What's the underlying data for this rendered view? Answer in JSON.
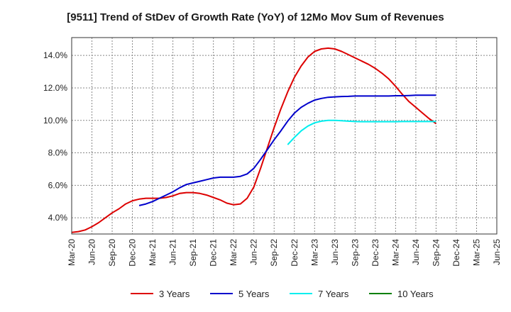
{
  "chart_data": {
    "type": "line",
    "title": "[9511]  Trend of StDev of Growth Rate (YoY) of 12Mo Mov Sum of Revenues",
    "xlabel": "",
    "ylabel": "",
    "ylim": [
      3.0,
      15.1
    ],
    "y_ticks": [
      4.0,
      6.0,
      8.0,
      10.0,
      12.0,
      14.0
    ],
    "y_tick_labels": [
      "4.0%",
      "6.0%",
      "8.0%",
      "10.0%",
      "12.0%",
      "14.0%"
    ],
    "x_ticks": [
      "Mar-20",
      "Jun-20",
      "Sep-20",
      "Dec-20",
      "Mar-21",
      "Jun-21",
      "Sep-21",
      "Dec-21",
      "Mar-22",
      "Jun-22",
      "Sep-22",
      "Dec-22",
      "Mar-23",
      "Jun-23",
      "Sep-23",
      "Dec-23",
      "Mar-24",
      "Jun-24",
      "Sep-24",
      "Dec-24",
      "Mar-25",
      "Jun-25"
    ],
    "grid": true,
    "legend_position": "bottom",
    "series": [
      {
        "name": "3 Years",
        "color": "#dd0000",
        "values": [
          [
            0,
            3.1
          ],
          [
            1,
            3.15
          ],
          [
            2,
            3.25
          ],
          [
            3,
            3.45
          ],
          [
            4,
            3.7
          ],
          [
            5,
            4.0
          ],
          [
            6,
            4.3
          ],
          [
            7,
            4.55
          ],
          [
            8,
            4.85
          ],
          [
            9,
            5.05
          ],
          [
            10,
            5.15
          ],
          [
            11,
            5.2
          ],
          [
            12,
            5.2
          ],
          [
            13,
            5.2
          ],
          [
            14,
            5.25
          ],
          [
            15,
            5.35
          ],
          [
            16,
            5.5
          ],
          [
            17,
            5.55
          ],
          [
            18,
            5.55
          ],
          [
            19,
            5.5
          ],
          [
            20,
            5.4
          ],
          [
            21,
            5.25
          ],
          [
            22,
            5.1
          ],
          [
            23,
            4.9
          ],
          [
            24,
            4.8
          ],
          [
            25,
            4.85
          ],
          [
            26,
            5.2
          ],
          [
            27,
            5.9
          ],
          [
            28,
            7.05
          ],
          [
            29,
            8.3
          ],
          [
            30,
            9.55
          ],
          [
            31,
            10.7
          ],
          [
            32,
            11.75
          ],
          [
            33,
            12.65
          ],
          [
            34,
            13.35
          ],
          [
            35,
            13.9
          ],
          [
            36,
            14.25
          ],
          [
            37,
            14.4
          ],
          [
            38,
            14.45
          ],
          [
            39,
            14.4
          ],
          [
            40,
            14.25
          ],
          [
            41,
            14.05
          ],
          [
            42,
            13.85
          ],
          [
            43,
            13.65
          ],
          [
            44,
            13.45
          ],
          [
            45,
            13.2
          ],
          [
            46,
            12.9
          ],
          [
            47,
            12.55
          ],
          [
            48,
            12.1
          ],
          [
            49,
            11.6
          ],
          [
            50,
            11.15
          ],
          [
            51,
            10.8
          ],
          [
            52,
            10.45
          ],
          [
            53,
            10.1
          ],
          [
            54,
            9.8
          ]
        ]
      },
      {
        "name": "5 Years",
        "color": "#0000cc",
        "values": [
          [
            10,
            4.75
          ],
          [
            11,
            4.85
          ],
          [
            12,
            5.0
          ],
          [
            13,
            5.2
          ],
          [
            14,
            5.4
          ],
          [
            15,
            5.6
          ],
          [
            16,
            5.85
          ],
          [
            17,
            6.05
          ],
          [
            18,
            6.15
          ],
          [
            19,
            6.25
          ],
          [
            20,
            6.35
          ],
          [
            21,
            6.45
          ],
          [
            22,
            6.5
          ],
          [
            23,
            6.5
          ],
          [
            24,
            6.5
          ],
          [
            25,
            6.55
          ],
          [
            26,
            6.7
          ],
          [
            27,
            7.05
          ],
          [
            28,
            7.6
          ],
          [
            29,
            8.2
          ],
          [
            30,
            8.8
          ],
          [
            31,
            9.35
          ],
          [
            32,
            9.95
          ],
          [
            33,
            10.45
          ],
          [
            34,
            10.8
          ],
          [
            35,
            11.05
          ],
          [
            36,
            11.25
          ],
          [
            37,
            11.35
          ],
          [
            38,
            11.42
          ],
          [
            39,
            11.45
          ],
          [
            40,
            11.47
          ],
          [
            41,
            11.48
          ],
          [
            42,
            11.5
          ],
          [
            43,
            11.5
          ],
          [
            44,
            11.5
          ],
          [
            45,
            11.5
          ],
          [
            46,
            11.5
          ],
          [
            47,
            11.5
          ],
          [
            48,
            11.52
          ],
          [
            49,
            11.52
          ],
          [
            50,
            11.53
          ],
          [
            51,
            11.55
          ],
          [
            52,
            11.55
          ],
          [
            53,
            11.55
          ],
          [
            54,
            11.55
          ]
        ]
      },
      {
        "name": "7 Years",
        "color": "#00eeee",
        "values": [
          [
            32,
            8.5
          ],
          [
            33,
            8.95
          ],
          [
            34,
            9.35
          ],
          [
            35,
            9.65
          ],
          [
            36,
            9.85
          ],
          [
            37,
            9.95
          ],
          [
            38,
            10.0
          ],
          [
            39,
            10.0
          ],
          [
            40,
            9.98
          ],
          [
            41,
            9.95
          ],
          [
            42,
            9.93
          ],
          [
            43,
            9.92
          ],
          [
            44,
            9.92
          ],
          [
            45,
            9.92
          ],
          [
            46,
            9.92
          ],
          [
            47,
            9.92
          ],
          [
            48,
            9.92
          ],
          [
            49,
            9.93
          ],
          [
            50,
            9.93
          ],
          [
            51,
            9.93
          ],
          [
            52,
            9.93
          ],
          [
            53,
            9.93
          ],
          [
            54,
            9.93
          ]
        ]
      },
      {
        "name": "10 Years",
        "color": "#008000",
        "values": []
      }
    ]
  }
}
